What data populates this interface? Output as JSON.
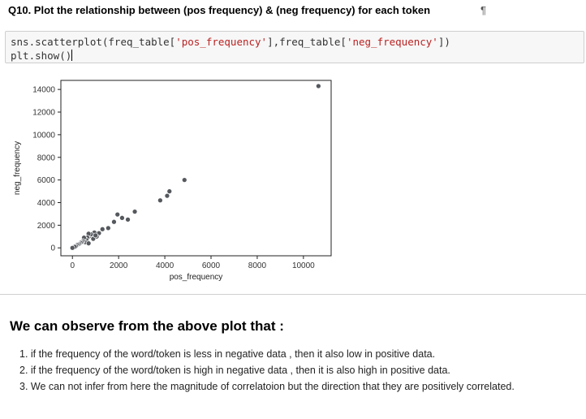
{
  "heading": {
    "title": "Q10. Plot the relationship between (pos frequency) & (neg frequency) for each token",
    "anchor": "¶"
  },
  "code_cell": {
    "line1_a": "sns.scatterplot(freq_table[",
    "line1_s1": "'pos_frequency'",
    "line1_b": "],freq_table[",
    "line1_s2": "'neg_frequency'",
    "line1_c": "])",
    "line2": "plt.show()"
  },
  "chart_data": {
    "type": "scatter",
    "xlabel": "pos_frequency",
    "ylabel": "neg_frequency",
    "xlim": [
      -500,
      11200
    ],
    "ylim": [
      -700,
      14800
    ],
    "x_ticks": [
      0,
      2000,
      4000,
      6000,
      8000,
      10000
    ],
    "y_ticks": [
      0,
      2000,
      4000,
      6000,
      8000,
      10000,
      12000,
      14000
    ],
    "point_color": "#55595e",
    "points": [
      [
        10650,
        14300
      ],
      [
        4850,
        6000
      ],
      [
        4200,
        5000
      ],
      [
        4100,
        4600
      ],
      [
        3800,
        4200
      ],
      [
        2700,
        3200
      ],
      [
        2400,
        2500
      ],
      [
        2150,
        2650
      ],
      [
        1950,
        2950
      ],
      [
        1800,
        2300
      ],
      [
        1550,
        1750
      ],
      [
        1300,
        1650
      ],
      [
        1150,
        1300
      ],
      [
        1050,
        1000
      ],
      [
        950,
        1350
      ],
      [
        850,
        1000
      ],
      [
        800,
        1200
      ],
      [
        700,
        1250
      ],
      [
        650,
        900
      ],
      [
        600,
        700
      ],
      [
        550,
        500
      ],
      [
        500,
        900
      ],
      [
        450,
        600
      ],
      [
        400,
        500
      ],
      [
        350,
        450
      ],
      [
        300,
        350
      ],
      [
        250,
        300
      ],
      [
        200,
        250
      ],
      [
        150,
        150
      ],
      [
        100,
        100
      ],
      [
        700,
        400
      ],
      [
        900,
        800
      ],
      [
        1000,
        1100
      ],
      [
        0,
        0
      ]
    ]
  },
  "markdown": {
    "heading": "We can observe from the above plot that :",
    "items": [
      "1. if the frequency of the word/token is less in negative data , then it also low in positive data.",
      "2. if the frequency of the word/token is high in negative data , then it is also high in positive data.",
      "3. We can not infer from here the magnitude of correlatoion but the direction that they are positively correlated."
    ]
  }
}
